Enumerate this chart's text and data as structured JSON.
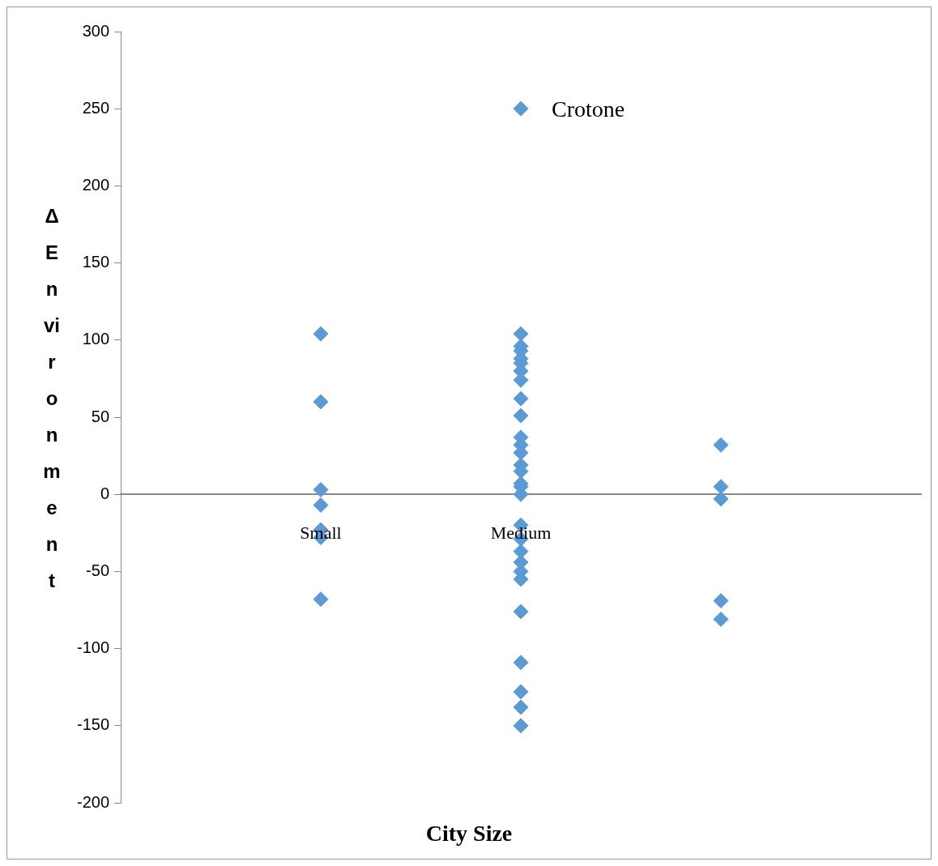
{
  "chart_data": {
    "type": "scatter",
    "xlabel": "City Size",
    "ylabel": "Δ Environment",
    "categories": [
      "Small",
      "Medium",
      null
    ],
    "series": [
      {
        "color": "#5b9bd5",
        "x": [
          "Small",
          "Small",
          "Small",
          "Small",
          "Small",
          "Small",
          "Small"
        ],
        "values": [
          104,
          60,
          3,
          -7,
          -23,
          -28,
          -68
        ]
      },
      {
        "color": "#5b9bd5",
        "x": [
          "Medium",
          "Medium",
          "Medium",
          "Medium",
          "Medium",
          "Medium",
          "Medium",
          "Medium",
          "Medium",
          "Medium",
          "Medium",
          "Medium",
          "Medium",
          "Medium",
          "Medium",
          "Medium",
          "Medium",
          "Medium",
          "Medium",
          "Medium",
          "Medium",
          "Medium",
          "Medium",
          "Medium",
          "Medium",
          "Medium",
          "Medium",
          "Medium",
          "Medium"
        ],
        "values": [
          250,
          104,
          96,
          93,
          88,
          85,
          80,
          74,
          62,
          51,
          37,
          32,
          27,
          19,
          15,
          7,
          5,
          0,
          -20,
          -29,
          -37,
          -44,
          -50,
          -55,
          -76,
          -109,
          -128,
          -138,
          -150
        ]
      },
      {
        "color": "#5b9bd5",
        "x": [
          null,
          null,
          null,
          null,
          null
        ],
        "values": [
          32,
          5,
          -3,
          -69,
          -81
        ]
      }
    ],
    "annotations": [
      {
        "text": "Crotone",
        "x": "Medium",
        "y": 250
      }
    ],
    "ylim": [
      -200,
      300
    ],
    "yticks": [
      -200,
      -150,
      -100,
      -50,
      0,
      50,
      100,
      150,
      200,
      250,
      300
    ],
    "marker": "diamond",
    "grid": false,
    "legend": false
  }
}
